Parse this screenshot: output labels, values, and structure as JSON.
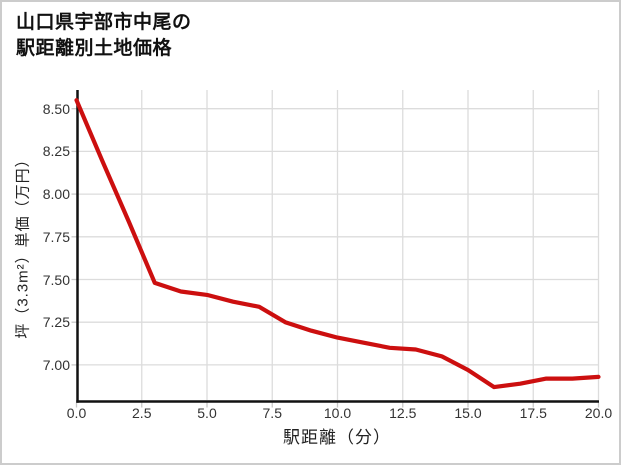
{
  "chart_data": {
    "type": "line",
    "title": "山口県宇部市中尾の駅距離別土地価格",
    "title_display": "山口県宇部市中尾の\n駅距離別土地価格",
    "xlabel": "駅距離（分）",
    "ylabel": "坪（3.3m²）単価（万円）",
    "x": [
      0,
      1,
      2,
      3,
      4,
      5,
      6,
      7,
      8,
      9,
      10,
      11,
      12,
      13,
      14,
      15,
      16,
      17,
      18,
      19,
      20
    ],
    "values": [
      8.55,
      8.19,
      7.84,
      7.48,
      7.43,
      7.41,
      7.37,
      7.34,
      7.25,
      7.2,
      7.16,
      7.13,
      7.1,
      7.09,
      7.05,
      6.97,
      6.87,
      6.89,
      6.92,
      6.92,
      6.93
    ],
    "xlim": [
      0,
      20
    ],
    "ylim": [
      6.79,
      8.61
    ],
    "xticks": [
      0,
      2.5,
      5,
      7.5,
      10,
      12.5,
      15,
      17.5,
      20
    ],
    "xtick_labels": [
      "0.0",
      "2.5",
      "5.0",
      "7.5",
      "10.0",
      "12.5",
      "15.0",
      "17.5",
      "20.0"
    ],
    "yticks": [
      8.5,
      8.25,
      8.0,
      7.75,
      7.5,
      7.25,
      7.0
    ],
    "ytick_labels": [
      "8.50",
      "8.25",
      "8.00",
      "7.75",
      "7.50",
      "7.25",
      "7.00"
    ],
    "grid": true,
    "legend_position": "none",
    "colors": {
      "line": "#cc0f0f",
      "grid": "#dcdcdc",
      "tick": "#c8c8c8",
      "axis": "#111111",
      "text": "#333333",
      "border": "#cccccc",
      "background": "#ffffff"
    }
  }
}
